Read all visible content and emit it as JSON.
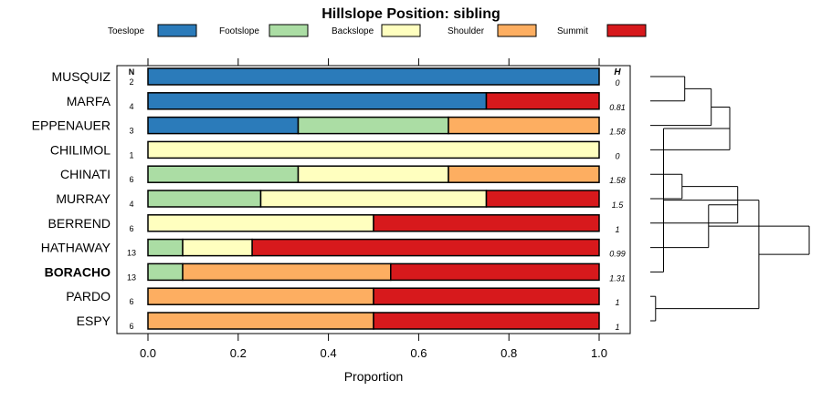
{
  "chart_data": {
    "type": "bar",
    "orientation": "horizontal",
    "stacked": true,
    "title": "Hillslope Position: sibling",
    "xlabel": "Proportion",
    "xlim": [
      0,
      1
    ],
    "xticks": [
      "0.0",
      "0.2",
      "0.4",
      "0.6",
      "0.8",
      "1.0"
    ],
    "n_header": "N",
    "h_header": "H",
    "highlight_category": "BORACHO",
    "legend": [
      {
        "name": "Toeslope",
        "color": "#2b7bba"
      },
      {
        "name": "Footslope",
        "color": "#abdda4"
      },
      {
        "name": "Backslope",
        "color": "#ffffbf"
      },
      {
        "name": "Shoulder",
        "color": "#fdae61"
      },
      {
        "name": "Summit",
        "color": "#d7191c"
      }
    ],
    "rows": [
      {
        "name": "MUSQUIZ",
        "n": "2",
        "h": "0",
        "values": [
          1,
          0,
          0,
          0,
          0
        ]
      },
      {
        "name": "MARFA",
        "n": "4",
        "h": "0.81",
        "values": [
          0.75,
          0,
          0,
          0,
          0.25
        ]
      },
      {
        "name": "EPPENAUER",
        "n": "3",
        "h": "1.58",
        "values": [
          0.333,
          0.333,
          0,
          0.334,
          0
        ]
      },
      {
        "name": "CHILIMOL",
        "n": "1",
        "h": "0",
        "values": [
          0,
          0,
          1,
          0,
          0
        ]
      },
      {
        "name": "CHINATI",
        "n": "6",
        "h": "1.58",
        "values": [
          0,
          0.333,
          0.333,
          0.334,
          0
        ]
      },
      {
        "name": "MURRAY",
        "n": "4",
        "h": "1.5",
        "values": [
          0,
          0.25,
          0.5,
          0,
          0.25
        ]
      },
      {
        "name": "BERREND",
        "n": "6",
        "h": "1",
        "values": [
          0,
          0,
          0.5,
          0,
          0.5
        ]
      },
      {
        "name": "HATHAWAY",
        "n": "13",
        "h": "0.99",
        "values": [
          0,
          0.077,
          0.154,
          0,
          0.769
        ]
      },
      {
        "name": "BORACHO",
        "n": "13",
        "h": "1.31",
        "values": [
          0,
          0.077,
          0,
          0.461,
          0.462
        ]
      },
      {
        "name": "PARDO",
        "n": "6",
        "h": "1",
        "values": [
          0,
          0,
          0,
          0.5,
          0.5
        ]
      },
      {
        "name": "ESPY",
        "n": "6",
        "h": "1",
        "values": [
          0,
          0,
          0,
          0.5,
          0.5
        ]
      }
    ],
    "dendrogram": [
      {
        "left": 0,
        "right": 1,
        "height": 0.13
      },
      {
        "left": "a",
        "right": 2,
        "height": 0.23
      },
      {
        "left": 4,
        "right": 5,
        "height": 0.12
      },
      {
        "left": 3,
        "right": "b",
        "height": 0.3
      },
      {
        "left": "c",
        "right": 6,
        "height": 0.33
      },
      {
        "left": 9,
        "right": 10,
        "height": 0.02
      },
      {
        "left": 8,
        "right": "d",
        "height": 0.05
      },
      {
        "left": 7,
        "right": "e",
        "height": 0.22
      },
      {
        "left": "f",
        "right": "g",
        "height": 0.41
      },
      {
        "left": "h",
        "right": "i",
        "height": 0.6
      }
    ]
  }
}
